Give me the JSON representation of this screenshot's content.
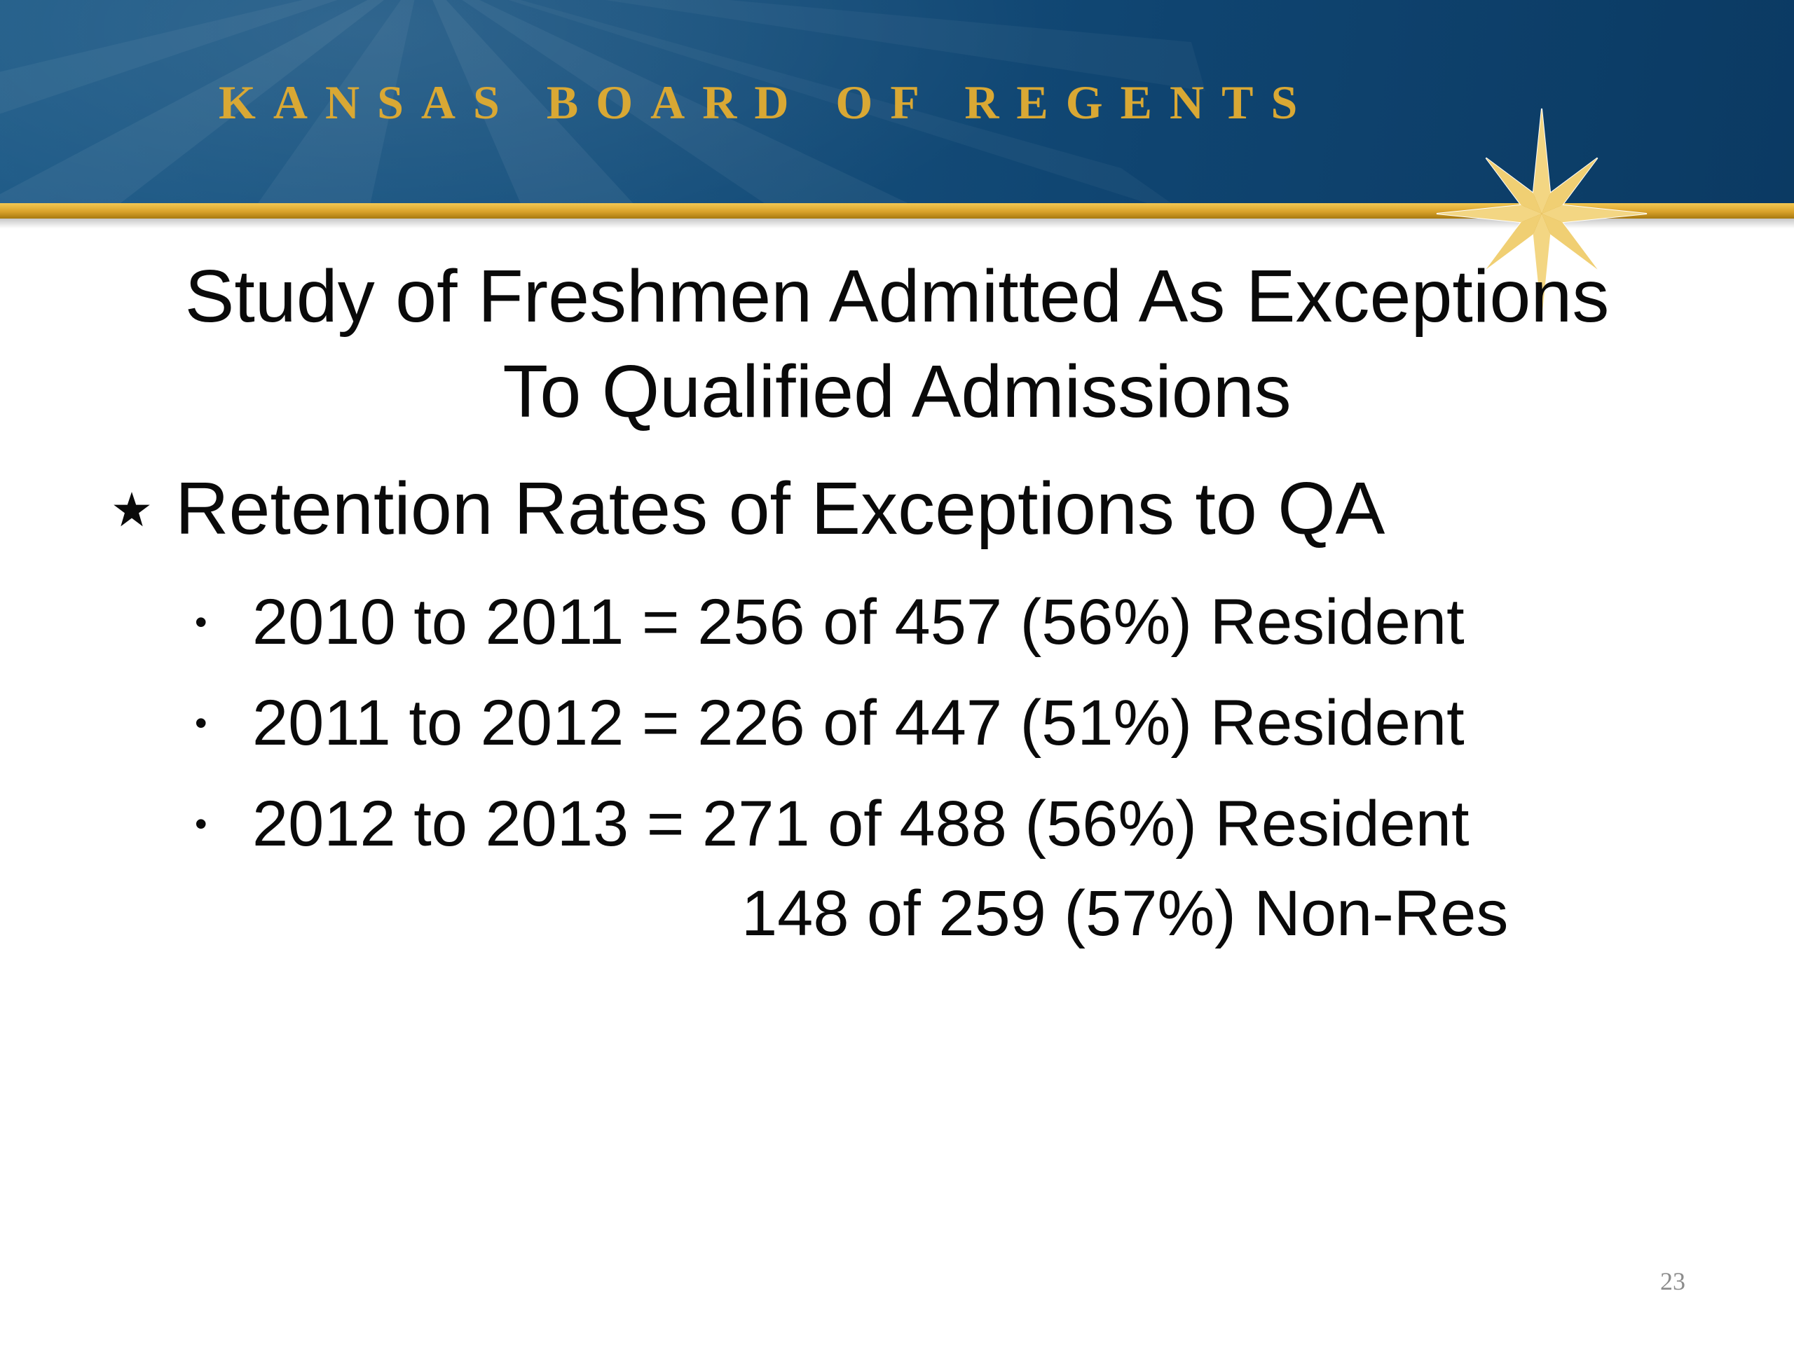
{
  "header": {
    "organization": "KANSAS BOARD OF REGENTS",
    "logo": "gold-star-icon",
    "colors": {
      "banner": "#16507d",
      "gold": "#d9a834"
    }
  },
  "slide": {
    "title_line1": "Study of Freshmen Admitted As Exceptions",
    "title_line2": "To Qualified Admissions",
    "main_bullet": {
      "icon": "star-bullet-icon",
      "text": "Retention Rates of Exceptions to QA"
    },
    "sub_bullets": [
      {
        "marker": "•",
        "text": "2010 to 2011 = 256 of 457 (56%) Resident"
      },
      {
        "marker": "•",
        "text": "2011 to 2012 = 226 of 447 (51%) Resident"
      },
      {
        "marker": "•",
        "text": "2012 to 2013 = 271 of 488 (56%) Resident"
      }
    ],
    "continuation": "148 of 259 (57%) Non-Res",
    "page_number": "23"
  }
}
